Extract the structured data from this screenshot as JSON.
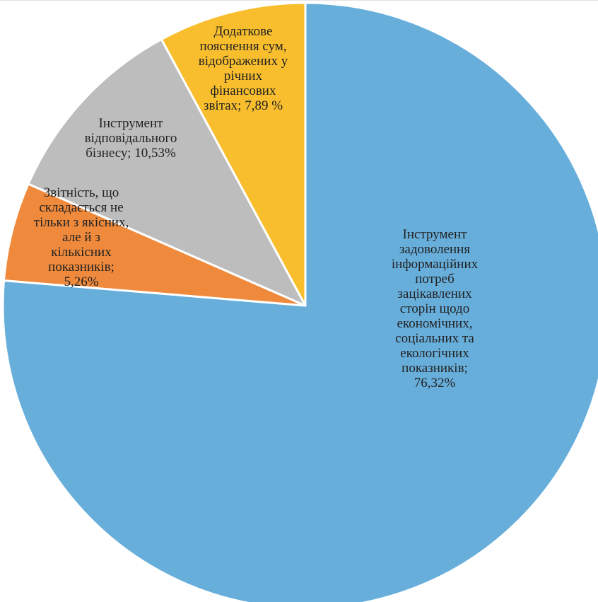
{
  "chart_data": {
    "type": "pie",
    "start_angle_deg": 0,
    "direction": "clockwise",
    "slices": [
      {
        "label": "Інструмент\nзадоволення\nінформаційних\nпотреб\nзацікавлених\nсторін щодо\nекономічних,\nсоціальних та\nекологічних\nпоказників;\n76,32%",
        "value": 76.32,
        "color": "#68AEDB"
      },
      {
        "label": "Звітність, що\nскладається не\nтільки з якісних,\nале й з\nкількісних\nпоказників;\n5,26%",
        "value": 5.26,
        "color": "#EF8A3D"
      },
      {
        "label": "Інструмент\nвідповідального\nбізнесу; 10,53%",
        "value": 10.53,
        "color": "#BDBDBD"
      },
      {
        "label": "Додаткове\nпояснення сум,\nвідображених у\nрічних\nфінансових\nзвітах; 7,89 %",
        "value": 7.89,
        "color": "#F8BE2E"
      }
    ]
  }
}
